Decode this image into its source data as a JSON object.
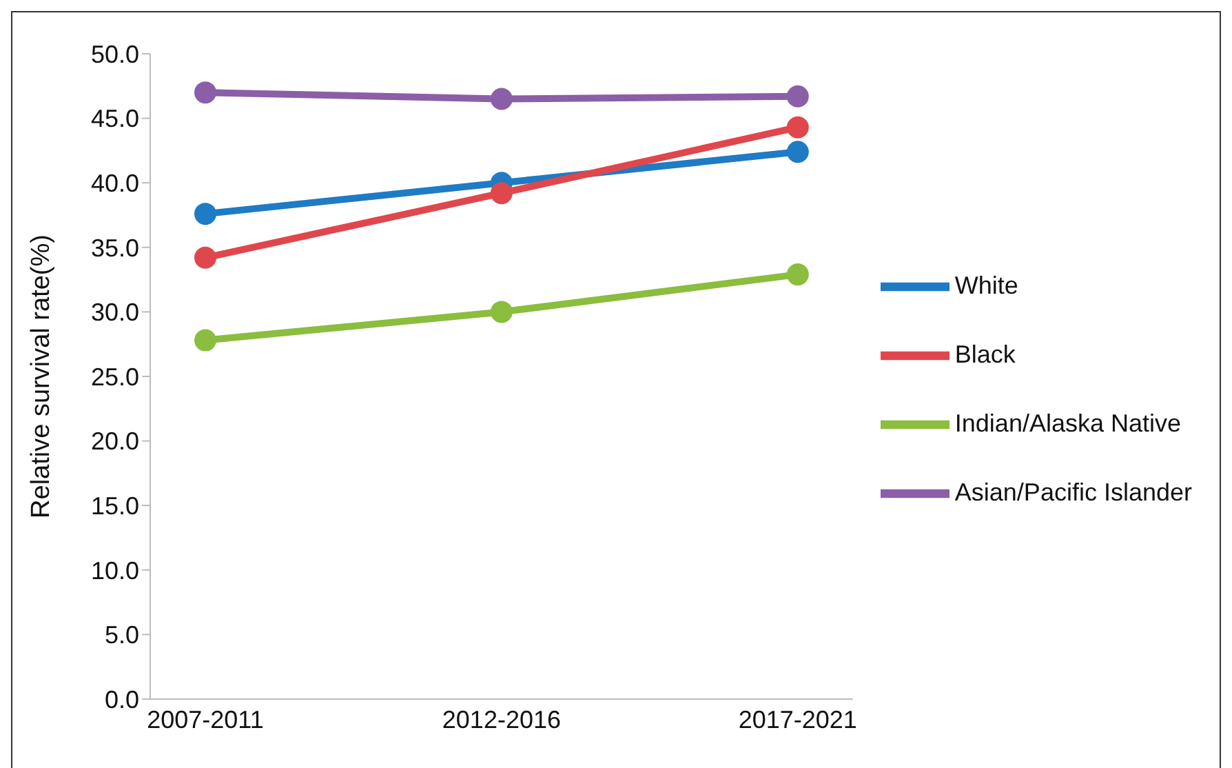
{
  "chart_data": {
    "type": "line",
    "ylabel": "Relative survival rate(%)",
    "categories": [
      "2007-2011",
      "2012-2016",
      "2017-2021"
    ],
    "series": [
      {
        "name": "White",
        "color": "#1f7bc4",
        "values": [
          37.6,
          40.0,
          42.4
        ]
      },
      {
        "name": "Black",
        "color": "#e0474c",
        "values": [
          34.2,
          39.2,
          44.3
        ]
      },
      {
        "name": "Indian/Alaska Native",
        "color": "#8bbd3e",
        "values": [
          27.8,
          30.0,
          32.9
        ]
      },
      {
        "name": "Asian/Pacific Islander",
        "color": "#8b5ea8",
        "values": [
          47.0,
          46.5,
          46.7
        ]
      }
    ],
    "ylim": [
      0,
      50
    ],
    "yticks": [
      {
        "value": 0,
        "label": "0.0"
      },
      {
        "value": 5,
        "label": "5.0"
      },
      {
        "value": 10,
        "label": "10.0"
      },
      {
        "value": 15,
        "label": "15.0"
      },
      {
        "value": 20,
        "label": "20.0"
      },
      {
        "value": 25,
        "label": "25.0"
      },
      {
        "value": 30,
        "label": "30.0"
      },
      {
        "value": 35,
        "label": "35.0"
      },
      {
        "value": 40,
        "label": "40.0"
      },
      {
        "value": 45,
        "label": "45.0"
      },
      {
        "value": 50,
        "label": "50.0"
      }
    ],
    "grid": false,
    "legend": "right",
    "marker": "circle",
    "line_style": "solid"
  }
}
